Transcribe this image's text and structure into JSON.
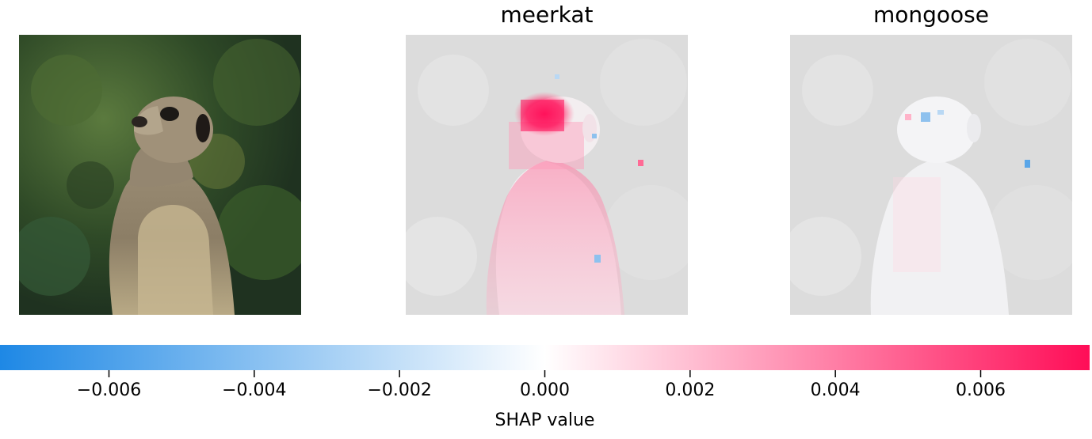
{
  "chart_data": {
    "type": "heatmap",
    "title": "",
    "panels": [
      {
        "name": "original-image",
        "label": ""
      },
      {
        "name": "meerkat",
        "label": "meerkat"
      },
      {
        "name": "mongoose",
        "label": "mongoose"
      }
    ],
    "colorbar": {
      "label": "SHAP value",
      "range": [
        -0.0075,
        0.0075
      ],
      "ticks": [
        -0.006,
        -0.004,
        -0.002,
        0.0,
        0.002,
        0.004,
        0.006
      ],
      "tick_labels": [
        "−0.006",
        "−0.004",
        "−0.002",
        "0.000",
        "0.002",
        "0.004",
        "0.006"
      ],
      "negative_color": "#1e88e5",
      "neutral_color": "#ffffff",
      "positive_color": "#ff0d57"
    }
  }
}
